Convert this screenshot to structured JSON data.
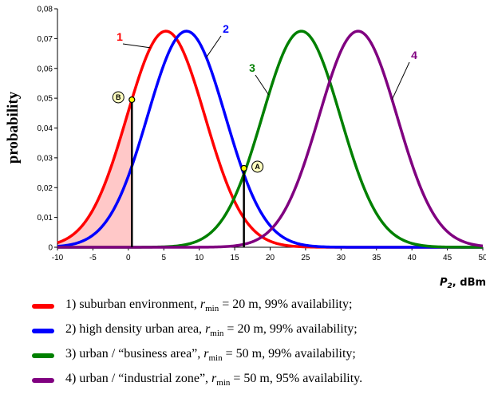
{
  "chart_data": {
    "type": "line",
    "xlabel": "P",
    "xlabel_sub": "2",
    "xunit": ", dBm",
    "ylabel": "probability",
    "xlim": [
      -10,
      50
    ],
    "ylim": [
      0,
      0.08
    ],
    "xticks": [
      "-10",
      "-5",
      "0",
      "5",
      "10",
      "15",
      "20",
      "25",
      "30",
      "35",
      "40",
      "45",
      "50"
    ],
    "yticks": [
      "0",
      "0,01",
      "0,02",
      "0,03",
      "0,04",
      "0,05",
      "0,06",
      "0,07",
      "0,08"
    ],
    "series": [
      {
        "label": "1",
        "color": "#ff0000",
        "mean": 5.3,
        "peak": 0.0725
      },
      {
        "label": "2",
        "color": "#0000ff",
        "mean": 8.2,
        "peak": 0.0725
      },
      {
        "label": "3",
        "color": "#008000",
        "mean": 24.4,
        "peak": 0.0725
      },
      {
        "label": "4",
        "color": "#800080",
        "mean": 32.4,
        "peak": 0.0725
      }
    ],
    "series_sigma": 5.5,
    "shaded_region": {
      "series": "1",
      "x_from": -10,
      "x_to": 0.5,
      "color": "#ffc8c8"
    },
    "markers": [
      {
        "label": "B",
        "x": 0.5,
        "y": 0.0495
      },
      {
        "label": "A",
        "x": 16.3,
        "y": 0.0265
      }
    ]
  },
  "legend": [
    {
      "color": "#ff0000",
      "num": "1)",
      "pre": "suburban environment,",
      "r": "r",
      "sub": "min",
      "post": " = 20 m, 99% availability;"
    },
    {
      "color": "#0000ff",
      "num": "2)",
      "pre": "high density urban area,",
      "r": "r",
      "sub": "min",
      "post": " = 20 m, 99% availability;"
    },
    {
      "color": "#008000",
      "num": "3)",
      "pre": "urban / “business area”,",
      "r": "r",
      "sub": "min",
      "post": " = 50 m, 99% availability;"
    },
    {
      "color": "#800080",
      "num": "4)",
      "pre": "urban / “industrial zone”,",
      "r": "r",
      "sub": "min",
      "post": " = 50 m, 95% availability."
    }
  ]
}
